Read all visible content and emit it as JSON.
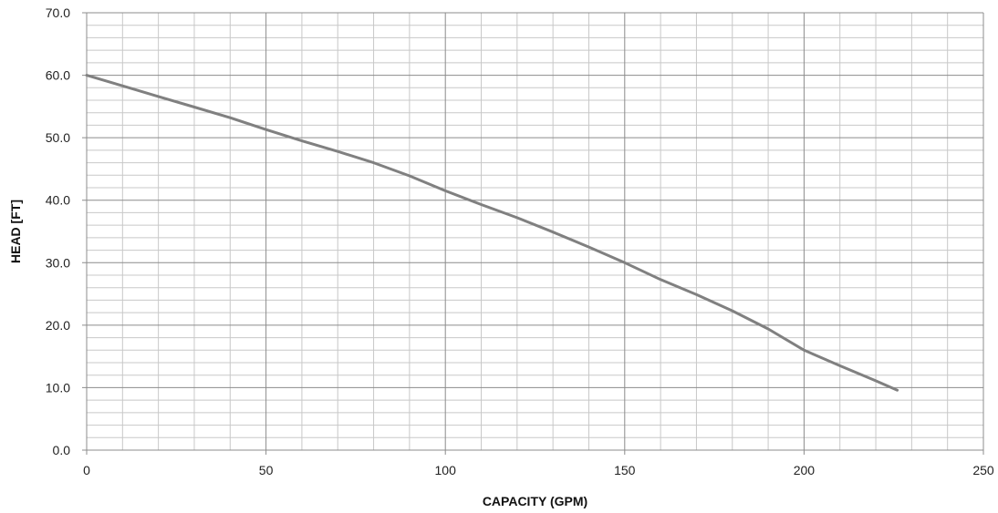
{
  "chart_data": {
    "type": "line",
    "title": "",
    "xlabel": "CAPACITY (GPM)",
    "ylabel": "HEAD [FT]",
    "xlim": [
      0,
      250
    ],
    "ylim": [
      0,
      70
    ],
    "x_ticks": [
      0,
      50,
      100,
      150,
      200,
      250
    ],
    "x_tick_labels": [
      "0",
      "50",
      "100",
      "150",
      "200",
      "250"
    ],
    "y_ticks": [
      0,
      10,
      20,
      30,
      40,
      50,
      60,
      70
    ],
    "y_tick_labels": [
      "0.0",
      "10.0",
      "20.0",
      "30.0",
      "40.0",
      "50.0",
      "60.0",
      "70.0"
    ],
    "x_minor_step": 10,
    "y_minor_step": 2,
    "grid": true,
    "legend": "none",
    "colors": {
      "line": "#808080",
      "major_grid": "#8c8c8c",
      "minor_grid": "#c8c8c8"
    },
    "series": [
      {
        "x": [
          0,
          10,
          20,
          30,
          40,
          50,
          60,
          70,
          80,
          90,
          100,
          110,
          120,
          130,
          140,
          150,
          160,
          170,
          180,
          190,
          200,
          210,
          220,
          226
        ],
        "values": [
          60.0,
          58.3,
          56.6,
          54.9,
          53.2,
          51.3,
          49.5,
          47.8,
          46.0,
          43.9,
          41.5,
          39.3,
          37.2,
          34.9,
          32.5,
          30.0,
          27.3,
          24.9,
          22.3,
          19.4,
          16.0,
          13.5,
          11.1,
          9.6
        ]
      }
    ]
  }
}
